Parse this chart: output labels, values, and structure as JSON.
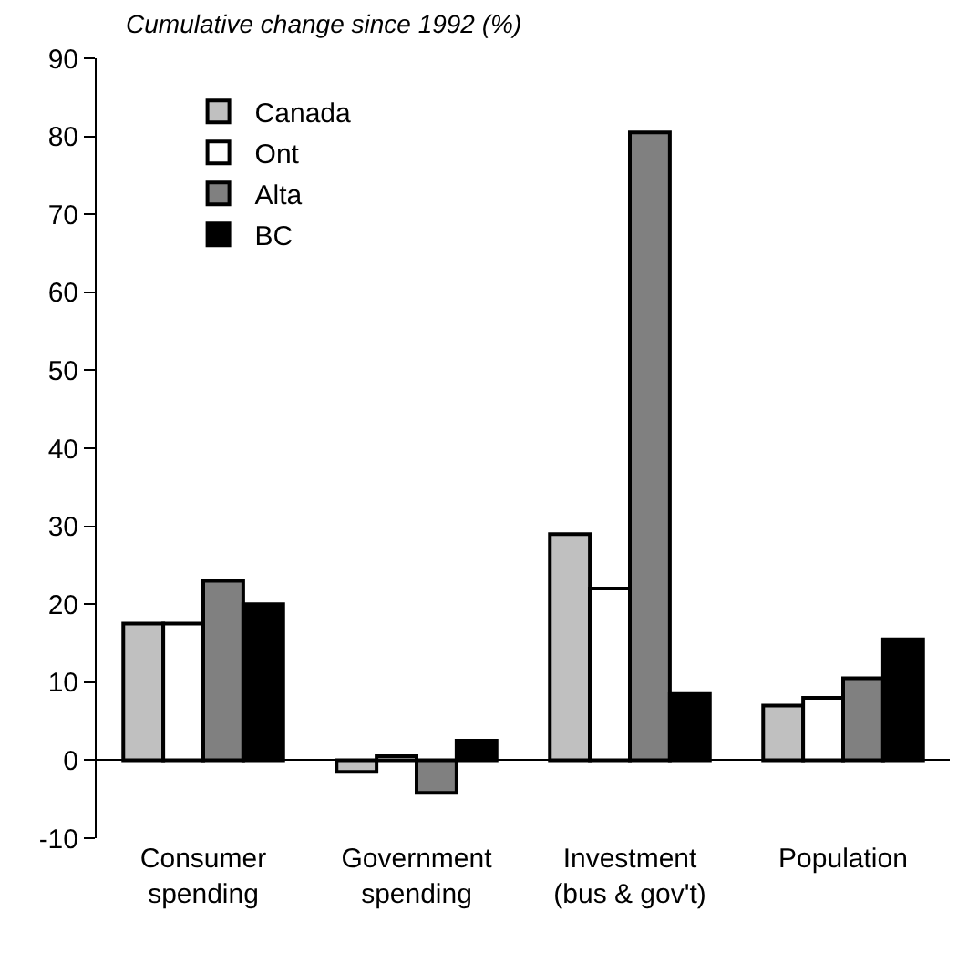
{
  "chart_data": {
    "type": "bar",
    "title": "Cumulative change since 1992 (%)",
    "categories": [
      "Consumer\nspending",
      "Government\nspending",
      "Investment\n(bus & gov't)",
      "Population"
    ],
    "series": [
      {
        "name": "Canada",
        "color": "#c0c0c0",
        "values": [
          17.5,
          -1.5,
          29,
          7
        ]
      },
      {
        "name": "Ont",
        "color": "#ffffff",
        "values": [
          17.5,
          0.5,
          22,
          8
        ]
      },
      {
        "name": "Alta",
        "color": "#808080",
        "values": [
          23,
          -4.2,
          80.5,
          10.5
        ]
      },
      {
        "name": "BC",
        "color": "#000000",
        "values": [
          20,
          2.5,
          8.5,
          15.5
        ]
      }
    ],
    "ylim": [
      -10,
      90
    ],
    "yticks": [
      -10,
      0,
      10,
      20,
      30,
      40,
      50,
      60,
      70,
      80,
      90
    ],
    "legend": "top left"
  }
}
